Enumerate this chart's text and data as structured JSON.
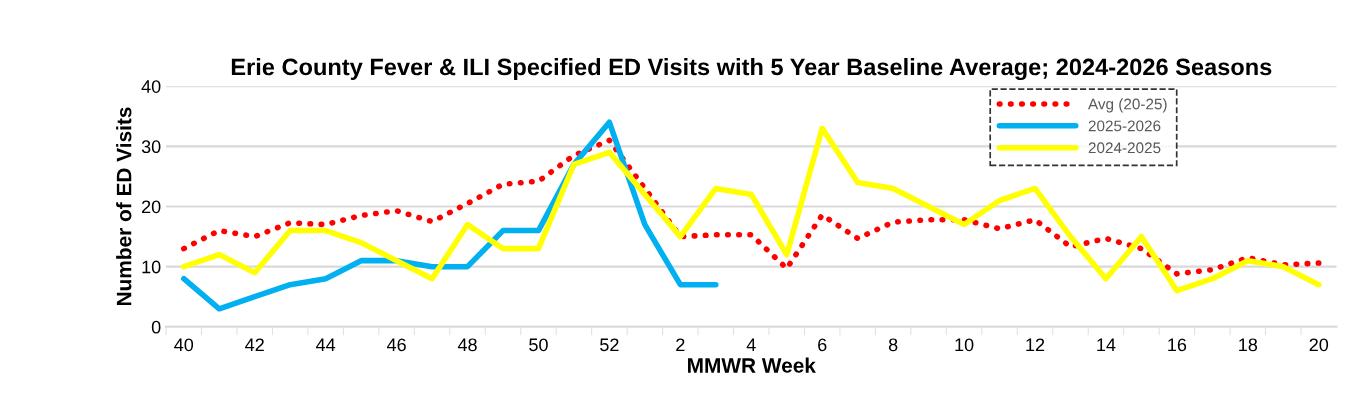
{
  "chart_data": {
    "type": "line",
    "title": "Erie County Fever & ILI Specified ED Visits with 5 Year Baseline Average; 2024-2026 Seasons",
    "xlabel": "MMWR Week",
    "ylabel": "Number of ED Visits",
    "categories": [
      "40",
      null,
      "42",
      null,
      "44",
      null,
      "46",
      null,
      "48",
      null,
      "50",
      null,
      "52",
      null,
      "2",
      null,
      "4",
      null,
      "6",
      null,
      "8",
      null,
      "10",
      null,
      "12",
      null,
      "14",
      null,
      "16",
      null,
      "18",
      null,
      "20"
    ],
    "ylim": [
      0,
      40
    ],
    "yticks": [
      0,
      10,
      20,
      30,
      40
    ],
    "grid": "y",
    "legend": "top right",
    "marker": "none",
    "series": [
      {
        "name": "Avg (20-25)",
        "color": "#ff0000",
        "line_style": "dotted",
        "values": [
          13,
          16,
          15,
          17.3,
          17,
          18.5,
          19.3,
          17.5,
          20.5,
          23.7,
          24.2,
          28.5,
          31,
          23,
          15,
          15.3,
          15.3,
          9.7,
          18.6,
          14.7,
          17.4,
          17.8,
          17.8,
          16.3,
          17.8,
          13.3,
          14.7,
          13,
          8.8,
          9.5,
          11.5,
          10.3,
          10.6
        ]
      },
      {
        "name": "2025-2026",
        "color": "#00b0f0",
        "line_style": "solid",
        "values": [
          8,
          3,
          5,
          7,
          8,
          11,
          11,
          10,
          10,
          16,
          16,
          27,
          34,
          17,
          7,
          7,
          null,
          null,
          null,
          null,
          null,
          null,
          null,
          null,
          null,
          null,
          null,
          null,
          null,
          null,
          null,
          null,
          null
        ]
      },
      {
        "name": "2024-2025",
        "color": "#ffff00",
        "line_style": "solid",
        "values": [
          10,
          12,
          9,
          16,
          16,
          14,
          11,
          8,
          17,
          13,
          13,
          27,
          29,
          22,
          15,
          23,
          22,
          12,
          33,
          24,
          23,
          20,
          17,
          21,
          23,
          15,
          8,
          15,
          6,
          8,
          11,
          10,
          7
        ]
      }
    ]
  }
}
